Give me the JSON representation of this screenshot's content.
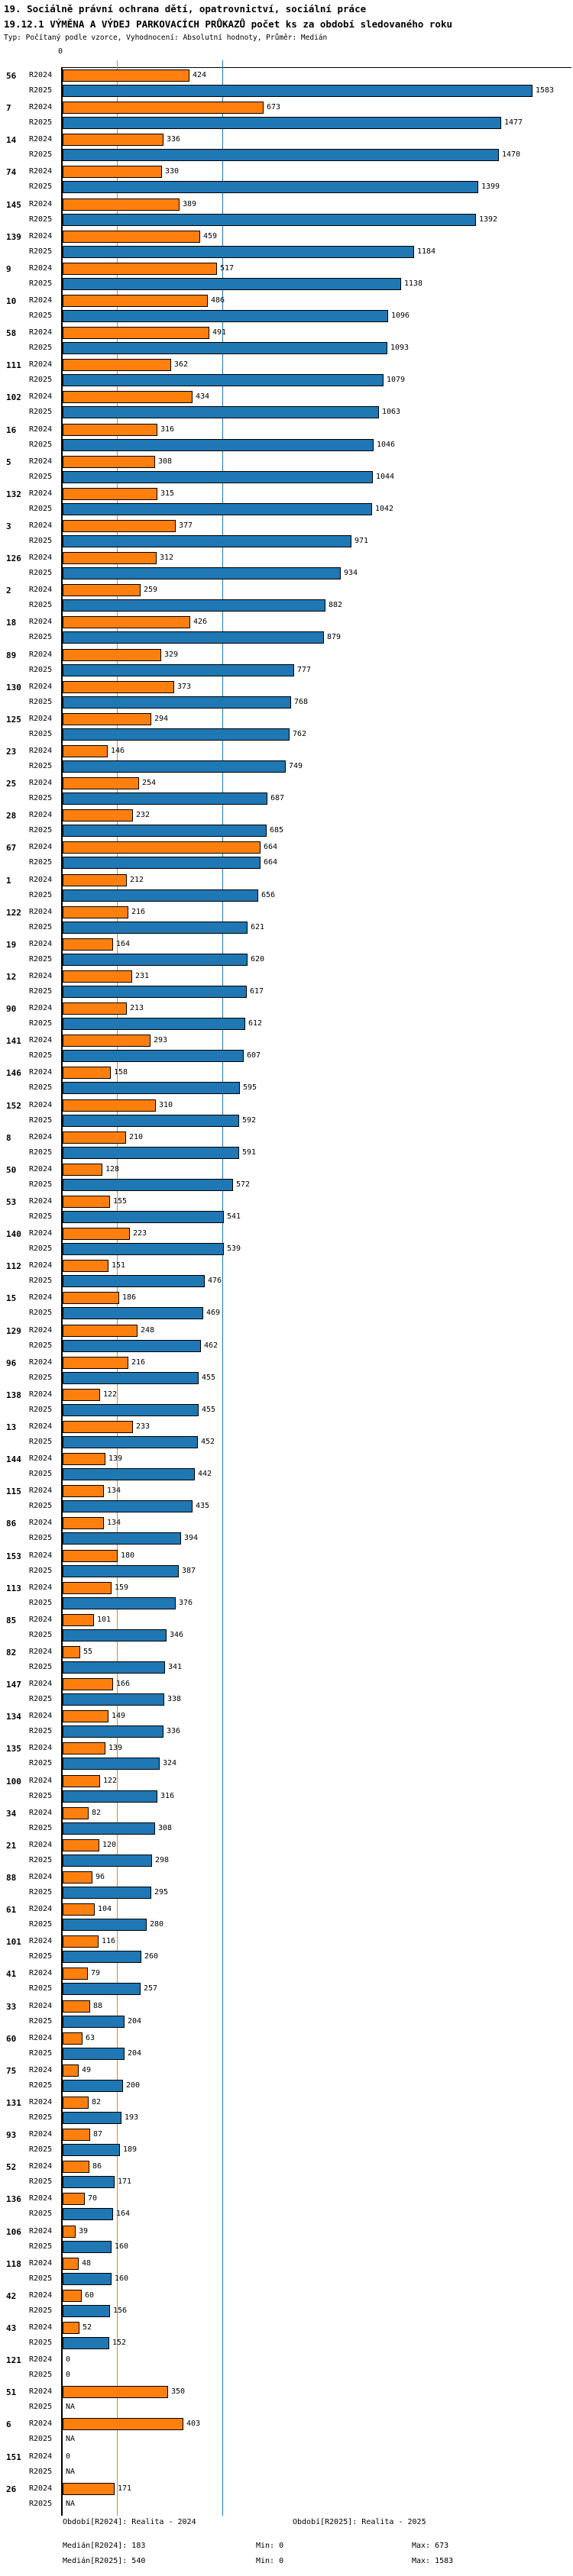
{
  "title": "19. Sociálně právní ochrana dětí, opatrovnictví, sociální práce",
  "subtitle": "19.12.1 VÝMĚNA A VÝDEJ PARKOVACÍCH PRŮKAZŮ počet ks za období sledovaného roku",
  "meta": "Typ: Počítaný podle vzorce, Vyhodnocení: Absolutní hodnoty, Průměr: Medián",
  "axis": {
    "zero_label": "0"
  },
  "series_labels": {
    "r2024": "R2024",
    "r2025": "R2025"
  },
  "colors": {
    "bar_r2024": "#ff7f0e",
    "bar_r2025": "#1f77b4",
    "median_line_r2024": "#ff7f0e",
    "median_line_r2025": "#1f77b4"
  },
  "chart_data": {
    "type": "bar",
    "orientation": "horizontal",
    "title": "19.12.1 VÝMĚNA A VÝDEJ PARKOVACÍCH PRŮKAZŮ počet ks za období sledovaného roku",
    "xlim": [
      0,
      1720
    ],
    "grid": "median-reference-lines",
    "legend_position": "none",
    "stats": {
      "median_r2024": 183,
      "median_r2025": 540,
      "min_r2024": 0,
      "min_r2025": 0,
      "max_r2024": 673,
      "max_r2025": 1583
    },
    "groups": [
      {
        "id": "56",
        "r2024": 424,
        "r2025": 1583
      },
      {
        "id": "7",
        "r2024": 673,
        "r2025": 1477
      },
      {
        "id": "14",
        "r2024": 336,
        "r2025": 1470
      },
      {
        "id": "74",
        "r2024": 330,
        "r2025": 1399
      },
      {
        "id": "145",
        "r2024": 389,
        "r2025": 1392
      },
      {
        "id": "139",
        "r2024": 459,
        "r2025": 1184
      },
      {
        "id": "9",
        "r2024": 517,
        "r2025": 1138
      },
      {
        "id": "10",
        "r2024": 486,
        "r2025": 1096
      },
      {
        "id": "58",
        "r2024": 491,
        "r2025": 1093
      },
      {
        "id": "111",
        "r2024": 362,
        "r2025": 1079
      },
      {
        "id": "102",
        "r2024": 434,
        "r2025": 1063
      },
      {
        "id": "16",
        "r2024": 316,
        "r2025": 1046
      },
      {
        "id": "5",
        "r2024": 308,
        "r2025": 1044
      },
      {
        "id": "132",
        "r2024": 315,
        "r2025": 1042
      },
      {
        "id": "3",
        "r2024": 377,
        "r2025": 971
      },
      {
        "id": "126",
        "r2024": 312,
        "r2025": 934
      },
      {
        "id": "2",
        "r2024": 259,
        "r2025": 882
      },
      {
        "id": "18",
        "r2024": 426,
        "r2025": 879
      },
      {
        "id": "89",
        "r2024": 329,
        "r2025": 777
      },
      {
        "id": "130",
        "r2024": 373,
        "r2025": 768
      },
      {
        "id": "125",
        "r2024": 294,
        "r2025": 762
      },
      {
        "id": "23",
        "r2024": 146,
        "r2025": 749
      },
      {
        "id": "25",
        "r2024": 254,
        "r2025": 687
      },
      {
        "id": "28",
        "r2024": 232,
        "r2025": 685
      },
      {
        "id": "67",
        "r2024": 664,
        "r2025": 664
      },
      {
        "id": "1",
        "r2024": 212,
        "r2025": 656
      },
      {
        "id": "122",
        "r2024": 216,
        "r2025": 621
      },
      {
        "id": "19",
        "r2024": 164,
        "r2025": 620
      },
      {
        "id": "12",
        "r2024": 231,
        "r2025": 617
      },
      {
        "id": "90",
        "r2024": 213,
        "r2025": 612
      },
      {
        "id": "141",
        "r2024": 293,
        "r2025": 607
      },
      {
        "id": "146",
        "r2024": 158,
        "r2025": 595
      },
      {
        "id": "152",
        "r2024": 310,
        "r2025": 592
      },
      {
        "id": "8",
        "r2024": 210,
        "r2025": 591
      },
      {
        "id": "50",
        "r2024": 128,
        "r2025": 572
      },
      {
        "id": "53",
        "r2024": 155,
        "r2025": 541
      },
      {
        "id": "140",
        "r2024": 223,
        "r2025": 539
      },
      {
        "id": "112",
        "r2024": 151,
        "r2025": 476
      },
      {
        "id": "15",
        "r2024": 186,
        "r2025": 469
      },
      {
        "id": "129",
        "r2024": 248,
        "r2025": 462
      },
      {
        "id": "96",
        "r2024": 216,
        "r2025": 455
      },
      {
        "id": "138",
        "r2024": 122,
        "r2025": 455
      },
      {
        "id": "13",
        "r2024": 233,
        "r2025": 452
      },
      {
        "id": "144",
        "r2024": 139,
        "r2025": 442
      },
      {
        "id": "115",
        "r2024": 134,
        "r2025": 435
      },
      {
        "id": "86",
        "r2024": 134,
        "r2025": 394
      },
      {
        "id": "153",
        "r2024": 180,
        "r2025": 387
      },
      {
        "id": "113",
        "r2024": 159,
        "r2025": 376
      },
      {
        "id": "85",
        "r2024": 101,
        "r2025": 346
      },
      {
        "id": "82",
        "r2024": 55,
        "r2025": 341
      },
      {
        "id": "147",
        "r2024": 166,
        "r2025": 338
      },
      {
        "id": "134",
        "r2024": 149,
        "r2025": 336
      },
      {
        "id": "135",
        "r2024": 139,
        "r2025": 324
      },
      {
        "id": "100",
        "r2024": 122,
        "r2025": 316
      },
      {
        "id": "34",
        "r2024": 82,
        "r2025": 308
      },
      {
        "id": "21",
        "r2024": 120,
        "r2025": 298
      },
      {
        "id": "88",
        "r2024": 96,
        "r2025": 295
      },
      {
        "id": "61",
        "r2024": 104,
        "r2025": 280
      },
      {
        "id": "101",
        "r2024": 116,
        "r2025": 260
      },
      {
        "id": "41",
        "r2024": 79,
        "r2025": 257
      },
      {
        "id": "33",
        "r2024": 88,
        "r2025": 204
      },
      {
        "id": "60",
        "r2024": 63,
        "r2025": 204
      },
      {
        "id": "75",
        "r2024": 49,
        "r2025": 200
      },
      {
        "id": "131",
        "r2024": 82,
        "r2025": 193
      },
      {
        "id": "93",
        "r2024": 87,
        "r2025": 189
      },
      {
        "id": "52",
        "r2024": 86,
        "r2025": 171
      },
      {
        "id": "136",
        "r2024": 70,
        "r2025": 164
      },
      {
        "id": "106",
        "r2024": 39,
        "r2025": 160
      },
      {
        "id": "118",
        "r2024": 48,
        "r2025": 160
      },
      {
        "id": "42",
        "r2024": 60,
        "r2025": 156
      },
      {
        "id": "43",
        "r2024": 52,
        "r2025": 152
      },
      {
        "id": "121",
        "r2024": 0,
        "r2025": 0
      },
      {
        "id": "51",
        "r2024": 350,
        "r2025": "NA"
      },
      {
        "id": "6",
        "r2024": 403,
        "r2025": "NA"
      },
      {
        "id": "151",
        "r2024": 0,
        "r2025": "NA"
      },
      {
        "id": "26",
        "r2024": 171,
        "r2025": "NA"
      }
    ]
  },
  "footer": {
    "obdobi_r2024": "Období[R2024]: Realita - 2024",
    "obdobi_r2025": "Období[R2025]: Realita - 2025",
    "median_r2024": "Medián[R2024]: 183",
    "median_r2025": "Medián[R2025]: 540",
    "min_r2024": "Min: 0",
    "min_r2025": "Min: 0",
    "max_r2024": "Max: 673",
    "max_r2025": "Max: 1583"
  }
}
